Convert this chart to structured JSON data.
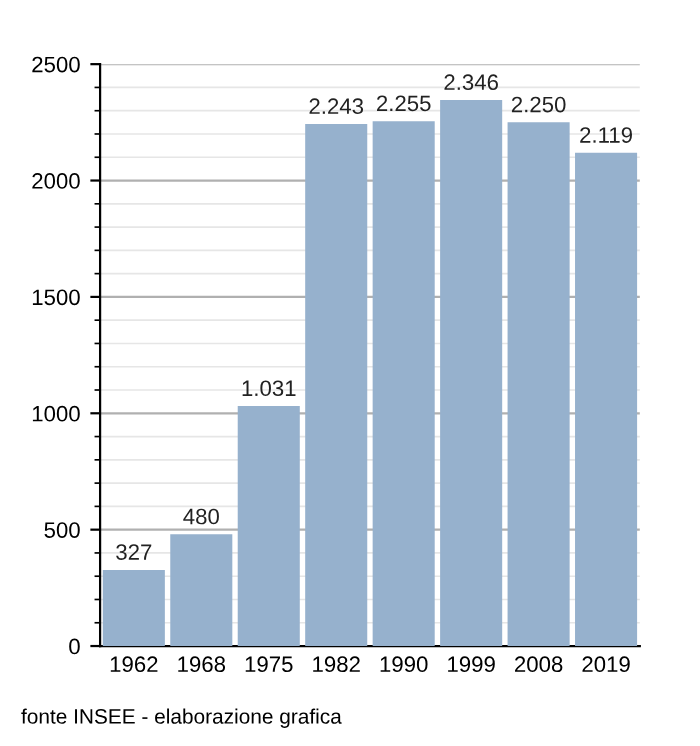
{
  "chart_data": {
    "type": "bar",
    "categories": [
      "1962",
      "1968",
      "1975",
      "1982",
      "1990",
      "1999",
      "2008",
      "2019"
    ],
    "values": [
      327,
      480,
      1031,
      2243,
      2255,
      2346,
      2250,
      2119
    ],
    "value_labels": [
      "327",
      "480",
      "1.031",
      "2.243",
      "2.255",
      "2.346",
      "2.250",
      "2.119"
    ],
    "color": "#96b1cd",
    "ylim": [
      0,
      2500
    ],
    "yticks": [
      0,
      500,
      1000,
      1500,
      2000,
      2500
    ],
    "grid": "y",
    "annotations": [
      "fonte INSEE - elaborazione grafica"
    ]
  }
}
